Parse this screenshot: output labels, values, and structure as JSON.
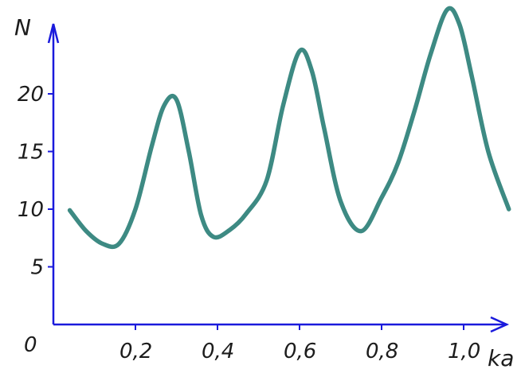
{
  "chart_data": {
    "type": "line",
    "title": "",
    "xlabel": "ka",
    "ylabel": "N",
    "origin_label": "0",
    "xlim": [
      0,
      1.1
    ],
    "ylim": [
      0,
      27
    ],
    "x_ticks": [
      {
        "value": 0.2,
        "label": "0,2"
      },
      {
        "value": 0.4,
        "label": "0,4"
      },
      {
        "value": 0.6,
        "label": "0,6"
      },
      {
        "value": 0.8,
        "label": "0,8"
      },
      {
        "value": 1.0,
        "label": "1,0"
      }
    ],
    "y_ticks": [
      {
        "value": 5,
        "label": "5"
      },
      {
        "value": 10,
        "label": "10"
      },
      {
        "value": 15,
        "label": "15"
      },
      {
        "value": 20,
        "label": "20"
      }
    ],
    "series": [
      {
        "x": [
          0.04,
          0.08,
          0.12,
          0.16,
          0.2,
          0.24,
          0.27,
          0.3,
          0.33,
          0.36,
          0.39,
          0.43,
          0.47,
          0.52,
          0.56,
          0.6,
          0.63,
          0.66,
          0.7,
          0.75,
          0.8,
          0.84,
          0.88,
          0.92,
          0.96,
          0.99,
          1.02,
          1.06,
          1.11
        ],
        "y": [
          9.9,
          8.1,
          7.0,
          7.0,
          10.0,
          15.5,
          19.0,
          19.5,
          15.0,
          9.5,
          7.6,
          8.2,
          9.6,
          12.5,
          19.0,
          23.7,
          22.0,
          17.0,
          10.7,
          8.1,
          11.0,
          14.0,
          18.5,
          23.5,
          27.3,
          26.0,
          21.5,
          15.0,
          10.0
        ]
      }
    ],
    "colors": {
      "axis": "#1a1adc",
      "line": "#3d8a83",
      "text": "#1c1c1c"
    }
  }
}
